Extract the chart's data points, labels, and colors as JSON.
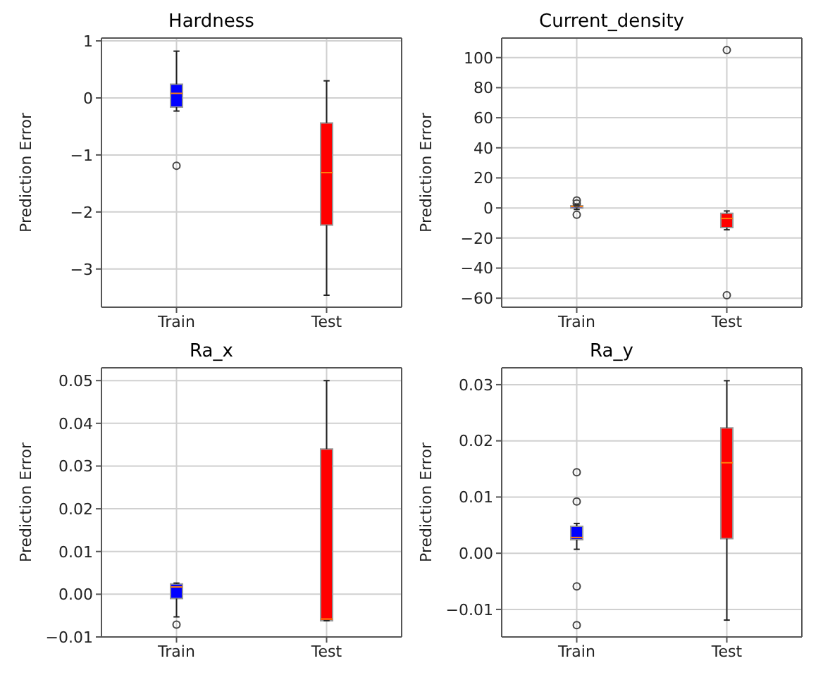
{
  "chart_data": [
    {
      "type": "box",
      "title": "Hardness",
      "ylabel": "Prediction Error",
      "categories": [
        "Train",
        "Test"
      ],
      "colors": [
        "#0000ff",
        "#ff0000"
      ],
      "grid": true,
      "ylim": [
        -3.67,
        1.05
      ],
      "yticks": [
        {
          "value": -3,
          "label": "−3"
        },
        {
          "value": -2,
          "label": "−2"
        },
        {
          "value": -1,
          "label": "−1"
        },
        0,
        1
      ],
      "boxes": [
        {
          "low": -0.23,
          "q1": -0.16,
          "median": 0.08,
          "q3": 0.24,
          "high": 0.82,
          "outliers": [
            -1.19
          ]
        },
        {
          "low": -3.46,
          "q1": -2.23,
          "median": -1.31,
          "q3": -0.44,
          "high": 0.3
        }
      ]
    },
    {
      "type": "box",
      "title": "Current_density",
      "ylabel": "Prediction Error",
      "categories": [
        "Train",
        "Test"
      ],
      "colors": [
        "#0000ff",
        "#ff0000"
      ],
      "grid": true,
      "ylim": [
        -66,
        113
      ],
      "yticks": [
        {
          "value": -60,
          "label": "−60"
        },
        {
          "value": -40,
          "label": "−40"
        },
        {
          "value": -20,
          "label": "−20"
        },
        0,
        20,
        40,
        60,
        80,
        100
      ],
      "boxes": [
        {
          "low": -1,
          "q1": 0,
          "median": 1,
          "q3": 1.5,
          "high": 2,
          "outliers": [
            5,
            3,
            -4.5
          ]
        },
        {
          "low": -14.5,
          "q1": -13,
          "median": -7,
          "q3": -3.6,
          "high": -2,
          "outliers": [
            105,
            -58
          ]
        }
      ]
    },
    {
      "type": "box",
      "title": "Ra_x",
      "ylabel": "Prediction Error",
      "categories": [
        "Train",
        "Test"
      ],
      "colors": [
        "#0000ff",
        "#ff0000"
      ],
      "grid": true,
      "ylim": [
        -0.01,
        0.053
      ],
      "yticks": [
        {
          "value": -0.01,
          "label": "−0.01"
        },
        {
          "value": 0,
          "label": "0.00"
        },
        {
          "value": 0.01,
          "label": "0.01"
        },
        {
          "value": 0.02,
          "label": "0.02"
        },
        {
          "value": 0.03,
          "label": "0.03"
        },
        {
          "value": 0.04,
          "label": "0.04"
        },
        {
          "value": 0.05,
          "label": "0.05"
        }
      ],
      "boxes": [
        {
          "low": -0.0053,
          "q1": -0.001,
          "median": 0.0017,
          "q3": 0.0024,
          "high": 0.0026,
          "outliers": [
            -0.0071
          ]
        },
        {
          "low": -0.0062,
          "q1": -0.0062,
          "median": -0.0058,
          "q3": 0.034,
          "high": 0.05
        }
      ]
    },
    {
      "type": "box",
      "title": "Ra_y",
      "ylabel": "Prediction Error",
      "categories": [
        "Train",
        "Test"
      ],
      "colors": [
        "#0000ff",
        "#ff0000"
      ],
      "grid": true,
      "ylim": [
        -0.0149,
        0.033
      ],
      "yticks": [
        {
          "value": -0.01,
          "label": "−0.01"
        },
        {
          "value": 0,
          "label": "0.00"
        },
        {
          "value": 0.01,
          "label": "0.01"
        },
        {
          "value": 0.02,
          "label": "0.02"
        },
        {
          "value": 0.03,
          "label": "0.03"
        }
      ],
      "boxes": [
        {
          "low": 0.0007,
          "q1": 0.0024,
          "median": 0.0028,
          "q3": 0.0048,
          "high": 0.0053,
          "outliers": [
            0.0144,
            0.0092,
            -0.0059,
            -0.0128
          ]
        },
        {
          "low": -0.0119,
          "q1": 0.0026,
          "median": 0.0161,
          "q3": 0.0223,
          "high": 0.0307
        }
      ]
    }
  ]
}
